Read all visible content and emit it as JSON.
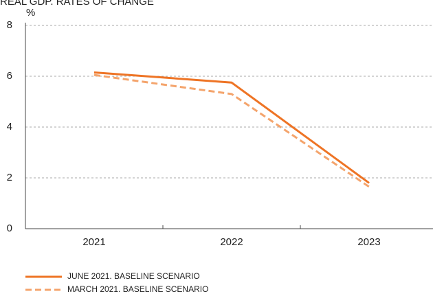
{
  "chart_data": {
    "type": "line",
    "title": "REAL GDP. RATES OF CHANGE",
    "y_label": "%",
    "categories": [
      "2021",
      "2022",
      "2023"
    ],
    "series": [
      {
        "name": "JUNE 2021. BASELINE SCENARIO",
        "color": "#ee7425",
        "dashed": false,
        "values": [
          6.15,
          5.75,
          1.8
        ]
      },
      {
        "name": "MARCH 2021. BASELINE SCENARIO",
        "color": "#f4a46c",
        "dashed": true,
        "values": [
          6.05,
          5.3,
          1.65
        ]
      }
    ],
    "ylim": [
      0,
      8
    ],
    "yticks": [
      0,
      2,
      4,
      6,
      8
    ],
    "grid": true
  }
}
